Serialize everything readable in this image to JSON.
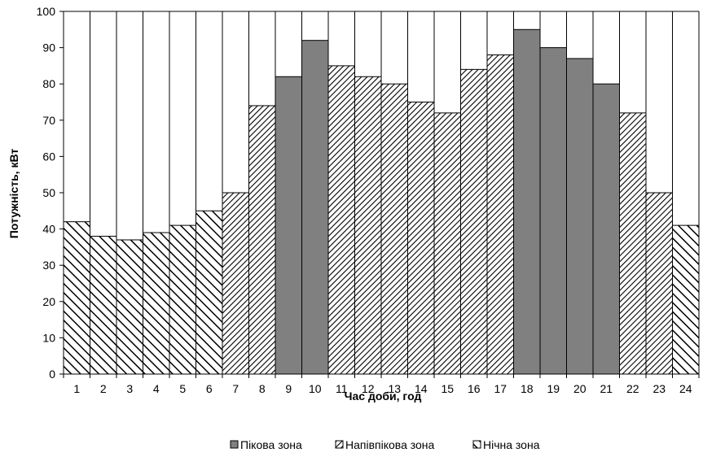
{
  "chart_data": {
    "type": "bar",
    "xlabel": "Час доби, год",
    "ylabel": "Потужність, кВт",
    "ylim": [
      0,
      100
    ],
    "yticks": [
      0,
      10,
      20,
      30,
      40,
      50,
      60,
      70,
      80,
      90,
      100
    ],
    "grid": true,
    "legend_position": "bottom",
    "categories": [
      "1",
      "2",
      "3",
      "4",
      "5",
      "6",
      "7",
      "8",
      "9",
      "10",
      "11",
      "12",
      "13",
      "14",
      "15",
      "16",
      "17",
      "18",
      "19",
      "20",
      "21",
      "22",
      "23",
      "24"
    ],
    "values": [
      42,
      38,
      37,
      39,
      41,
      45,
      50,
      74,
      82,
      92,
      85,
      82,
      80,
      75,
      72,
      84,
      88,
      95,
      90,
      87,
      80,
      72,
      50,
      41
    ],
    "zones": [
      "night",
      "night",
      "night",
      "night",
      "night",
      "night",
      "semi",
      "semi",
      "peak",
      "peak",
      "semi",
      "semi",
      "semi",
      "semi",
      "semi",
      "semi",
      "semi",
      "peak",
      "peak",
      "peak",
      "peak",
      "semi",
      "semi",
      "night"
    ],
    "series": [
      {
        "key": "peak",
        "name": "Пікова зона",
        "fill": "#808080",
        "pattern": "solid"
      },
      {
        "key": "semi",
        "name": "Напівпікова зона",
        "fill": "#000000",
        "pattern": "dense-diagonal-down"
      },
      {
        "key": "night",
        "name": "Нічна зона",
        "fill": "#000000",
        "pattern": "wide-diagonal-up"
      }
    ]
  }
}
